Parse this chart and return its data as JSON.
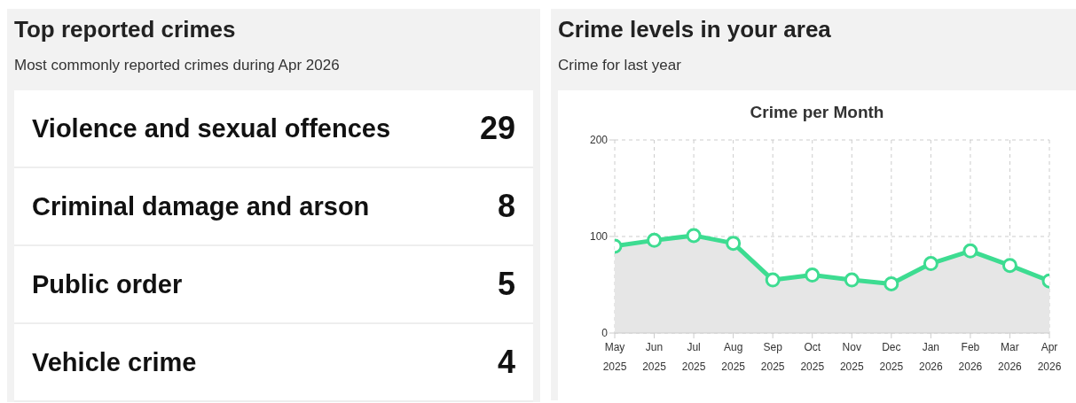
{
  "chart_data": [
    {
      "type": "other",
      "title": "Top reported crimes",
      "subtitle": "Most commonly reported crimes during Apr 2026",
      "categories": [
        "Violence and sexual offences",
        "Criminal damage and arson",
        "Public order",
        "Vehicle crime"
      ],
      "values": [
        29,
        8,
        5,
        4
      ],
      "data_labels": true
    },
    {
      "type": "area",
      "title": "Crime levels in your area",
      "subtitle": "Crime for last year",
      "annotations": [
        "Crime per Month"
      ],
      "categories": [
        "May 2025",
        "Jun 2025",
        "Jul 2025",
        "Aug 2025",
        "Sep 2025",
        "Oct 2025",
        "Nov 2025",
        "Dec 2025",
        "Jan 2026",
        "Feb 2026",
        "Mar 2026",
        "Apr 2026"
      ],
      "series": [
        {
          "color": "#3ddc91",
          "values": [
            90,
            96,
            101,
            93,
            55,
            60,
            55,
            51,
            72,
            85,
            70,
            54
          ]
        }
      ],
      "ylim": [
        0,
        200
      ],
      "yticks": [
        0,
        100,
        200
      ],
      "grid": true,
      "legend": false,
      "marker": "circle",
      "line_style": "solid"
    }
  ]
}
